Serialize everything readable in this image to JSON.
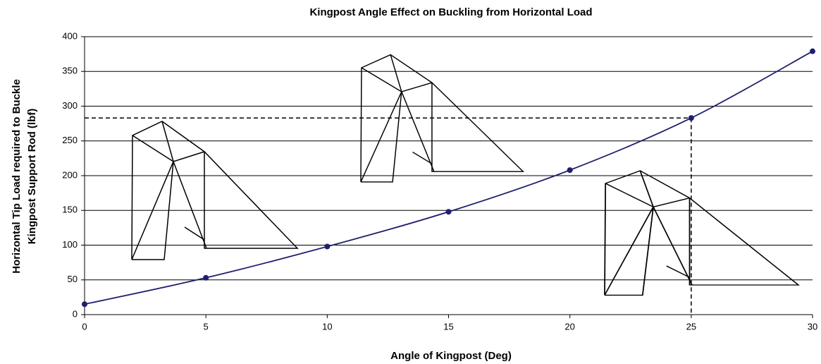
{
  "chart_data": {
    "type": "line",
    "title": "Kingpost Angle Effect on Buckling from Horizontal Load",
    "y_label": [
      "Horizontal Tip Load required to Buckle",
      "Kingpost Support Rod (lbf)"
    ],
    "x_label": "Angle of Kingpost (Deg)",
    "x": [
      0,
      5,
      10,
      15,
      20,
      25,
      30
    ],
    "values": [
      15,
      53,
      98,
      148,
      208,
      283,
      379
    ],
    "color": "#1f1f6e",
    "xlim": [
      0,
      30
    ],
    "xticks": [
      0,
      5,
      10,
      15,
      20,
      25,
      30
    ],
    "ylim": [
      0,
      400
    ],
    "yticks": [
      0,
      50,
      100,
      150,
      200,
      250,
      300,
      350,
      400
    ],
    "grid": true
  }
}
